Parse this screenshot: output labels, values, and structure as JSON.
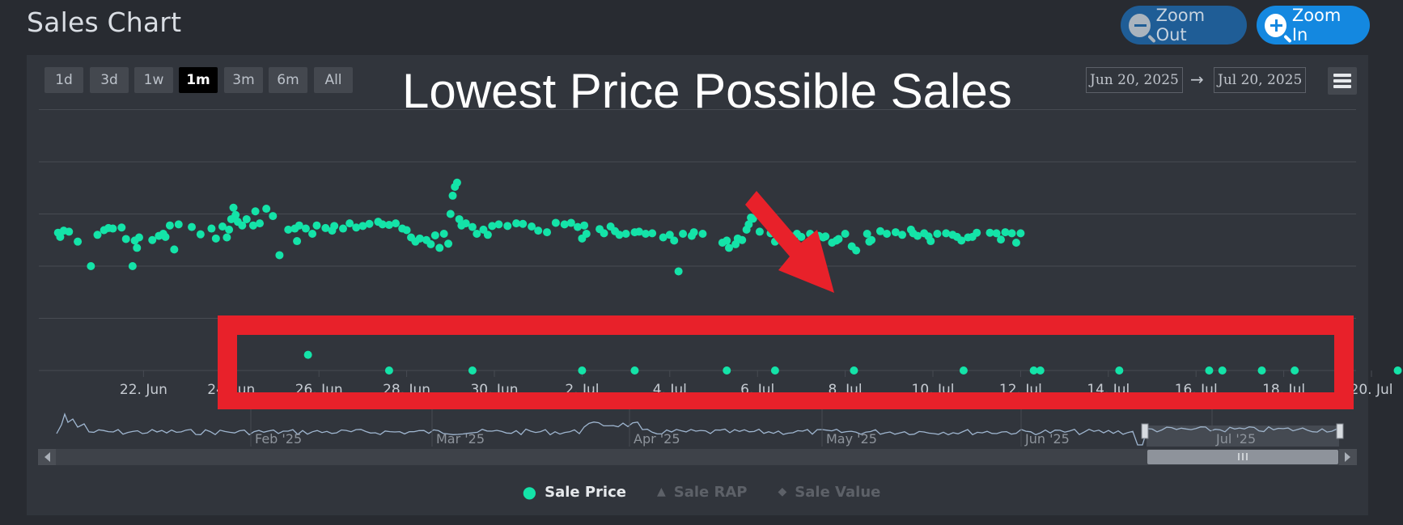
{
  "header": {
    "title": "Sales Chart",
    "zoom_out_label": "Zoom Out",
    "zoom_in_label": "Zoom In"
  },
  "range_selector": {
    "buttons": [
      "1d",
      "3d",
      "1w",
      "1m",
      "3m",
      "6m",
      "All"
    ],
    "active": "1m",
    "from": "Jun 20, 2025",
    "arrow": "→",
    "to": "Jul 20, 2025"
  },
  "annotation": {
    "text": "Lowest Price Possible Sales",
    "highlight_color": "#e8212a",
    "arrow_color": "#e8212a"
  },
  "colors": {
    "series": "#14e3a8",
    "navigator_line": "#9fb6d0",
    "grid": "#474b52"
  },
  "chart_data": {
    "type": "scatter",
    "x_start": "2025-06-20",
    "x_end": "2025-07-20",
    "x_tick_labels": [
      "22. Jun",
      "24. Jun",
      "26. Jun",
      "28. Jun",
      "30. Jun",
      "2. Jul",
      "4. Jul",
      "6. Jul",
      "8. Jul",
      "10. Jul",
      "12. Jul",
      "14. Jul",
      "16. Jul",
      "18. Jul",
      "20. Jul"
    ],
    "grid_lines": 6,
    "series": [
      {
        "name": "Sale Price",
        "points_main": [
          [
            20.05,
            2.64
          ],
          [
            20.1,
            2.56
          ],
          [
            20.18,
            2.68
          ],
          [
            20.3,
            2.66
          ],
          [
            20.5,
            2.47
          ],
          [
            20.8,
            2.0
          ],
          [
            20.95,
            2.6
          ],
          [
            21.1,
            2.69
          ],
          [
            21.2,
            2.73
          ],
          [
            21.3,
            2.72
          ],
          [
            21.5,
            2.74
          ],
          [
            21.6,
            2.52
          ],
          [
            21.75,
            2.0
          ],
          [
            21.8,
            2.49
          ],
          [
            21.85,
            2.35
          ],
          [
            21.9,
            2.55
          ],
          [
            22.2,
            2.5
          ],
          [
            22.35,
            2.58
          ],
          [
            22.45,
            2.62
          ],
          [
            22.5,
            2.56
          ],
          [
            22.6,
            2.78
          ],
          [
            22.7,
            2.32
          ],
          [
            22.8,
            2.8
          ],
          [
            23.1,
            2.75
          ],
          [
            23.3,
            2.61
          ],
          [
            23.55,
            2.72
          ],
          [
            23.65,
            2.53
          ],
          [
            23.8,
            2.76
          ],
          [
            23.9,
            2.55
          ],
          [
            23.95,
            2.7
          ],
          [
            24.0,
            2.9
          ],
          [
            24.05,
            3.12
          ],
          [
            24.1,
            2.98
          ],
          [
            24.15,
            2.85
          ],
          [
            24.25,
            2.78
          ],
          [
            24.35,
            2.9
          ],
          [
            24.5,
            2.78
          ],
          [
            24.55,
            3.05
          ],
          [
            24.65,
            2.82
          ],
          [
            24.8,
            3.1
          ],
          [
            24.95,
            2.96
          ],
          [
            25.1,
            2.21
          ],
          [
            25.3,
            2.7
          ],
          [
            25.45,
            2.72
          ],
          [
            25.5,
            2.48
          ],
          [
            25.55,
            2.78
          ],
          [
            25.7,
            2.72
          ],
          [
            25.85,
            2.62
          ],
          [
            25.95,
            2.78
          ],
          [
            26.15,
            2.73
          ],
          [
            26.3,
            2.68
          ],
          [
            26.35,
            2.77
          ],
          [
            26.55,
            2.72
          ],
          [
            26.7,
            2.82
          ],
          [
            26.85,
            2.74
          ],
          [
            27.0,
            2.77
          ],
          [
            27.15,
            2.81
          ],
          [
            27.35,
            2.85
          ],
          [
            27.45,
            2.8
          ],
          [
            27.6,
            2.79
          ],
          [
            27.75,
            2.82
          ],
          [
            27.9,
            2.72
          ],
          [
            28.0,
            2.69
          ],
          [
            28.1,
            2.55
          ],
          [
            28.2,
            2.47
          ],
          [
            28.3,
            2.53
          ],
          [
            28.45,
            2.5
          ],
          [
            28.55,
            2.42
          ],
          [
            28.65,
            2.59
          ],
          [
            28.75,
            2.35
          ],
          [
            28.85,
            2.62
          ],
          [
            28.95,
            2.43
          ],
          [
            29.0,
            3.0
          ],
          [
            29.05,
            3.35
          ],
          [
            29.1,
            3.52
          ],
          [
            29.15,
            3.6
          ],
          [
            29.2,
            2.9
          ],
          [
            29.25,
            2.78
          ],
          [
            29.35,
            2.82
          ],
          [
            29.5,
            2.75
          ],
          [
            29.6,
            2.62
          ],
          [
            29.75,
            2.7
          ],
          [
            29.85,
            2.6
          ],
          [
            29.95,
            2.77
          ],
          [
            30.1,
            2.8
          ],
          [
            30.3,
            2.77
          ],
          [
            30.5,
            2.82
          ],
          [
            30.65,
            2.81
          ],
          [
            30.85,
            2.76
          ],
          [
            31.0,
            2.68
          ],
          [
            31.2,
            2.65
          ],
          [
            31.4,
            2.83
          ],
          [
            31.6,
            2.8
          ],
          [
            31.75,
            2.83
          ],
          [
            31.9,
            2.75
          ],
          [
            32.0,
            2.53
          ],
          [
            32.05,
            2.78
          ],
          [
            32.1,
            2.62
          ],
          [
            32.4,
            2.71
          ],
          [
            32.5,
            2.63
          ],
          [
            32.65,
            2.76
          ],
          [
            32.75,
            2.67
          ],
          [
            32.85,
            2.6
          ],
          [
            33.0,
            2.62
          ],
          [
            33.2,
            2.65
          ],
          [
            33.3,
            2.66
          ],
          [
            33.45,
            2.62
          ],
          [
            33.6,
            2.63
          ],
          [
            33.85,
            2.55
          ],
          [
            34.0,
            2.6
          ],
          [
            34.1,
            2.49
          ],
          [
            34.2,
            1.9
          ],
          [
            34.3,
            2.62
          ],
          [
            34.5,
            2.58
          ],
          [
            34.55,
            2.65
          ],
          [
            34.75,
            2.62
          ],
          [
            35.2,
            2.45
          ],
          [
            35.3,
            2.49
          ],
          [
            35.35,
            2.35
          ],
          [
            35.5,
            2.42
          ],
          [
            35.55,
            2.53
          ],
          [
            35.65,
            2.5
          ],
          [
            35.75,
            2.7
          ],
          [
            35.8,
            2.8
          ],
          [
            35.85,
            2.93
          ],
          [
            35.9,
            2.91
          ],
          [
            36.0,
            3.0
          ],
          [
            36.05,
            2.66
          ],
          [
            36.3,
            2.63
          ],
          [
            36.4,
            2.47
          ],
          [
            36.5,
            2.72
          ],
          [
            36.55,
            2.6
          ],
          [
            36.75,
            2.58
          ],
          [
            36.9,
            2.62
          ],
          [
            37.0,
            2.56
          ],
          [
            37.2,
            2.62
          ],
          [
            37.4,
            2.58
          ],
          [
            37.5,
            2.55
          ],
          [
            37.55,
            2.57
          ],
          [
            37.7,
            2.45
          ],
          [
            37.8,
            2.49
          ],
          [
            37.85,
            2.52
          ],
          [
            38.0,
            2.62
          ],
          [
            38.15,
            2.38
          ],
          [
            38.25,
            2.3
          ],
          [
            38.5,
            2.62
          ],
          [
            38.55,
            2.47
          ],
          [
            38.6,
            2.5
          ],
          [
            38.8,
            2.67
          ],
          [
            38.95,
            2.62
          ],
          [
            39.15,
            2.65
          ],
          [
            39.3,
            2.6
          ],
          [
            39.5,
            2.7
          ],
          [
            39.55,
            2.63
          ],
          [
            39.65,
            2.58
          ],
          [
            39.8,
            2.63
          ],
          [
            39.9,
            2.57
          ],
          [
            39.95,
            2.48
          ],
          [
            40.1,
            2.62
          ],
          [
            40.3,
            2.63
          ],
          [
            40.45,
            2.6
          ],
          [
            40.55,
            2.56
          ],
          [
            40.65,
            2.49
          ],
          [
            40.8,
            2.55
          ],
          [
            40.9,
            2.56
          ],
          [
            41.0,
            2.64
          ],
          [
            41.3,
            2.64
          ],
          [
            41.45,
            2.63
          ],
          [
            41.55,
            2.51
          ],
          [
            41.65,
            2.65
          ],
          [
            41.8,
            2.63
          ],
          [
            41.9,
            2.45
          ],
          [
            42.0,
            2.63
          ]
        ],
        "points_low": [
          [
            25.75,
            0.3
          ],
          [
            27.6,
            0.0
          ],
          [
            29.5,
            0.0
          ],
          [
            32.0,
            0.0
          ],
          [
            33.2,
            0.0
          ],
          [
            35.3,
            0.0
          ],
          [
            36.4,
            0.0
          ],
          [
            38.2,
            0.0
          ],
          [
            40.7,
            0.0
          ],
          [
            42.3,
            0.0
          ],
          [
            42.45,
            0.0
          ],
          [
            44.25,
            0.0
          ],
          [
            46.3,
            0.0
          ],
          [
            46.6,
            0.0
          ],
          [
            47.5,
            0.0
          ],
          [
            48.25,
            0.0
          ],
          [
            50.6,
            0.0
          ]
        ]
      },
      {
        "name": "Sale RAP",
        "visible": false
      },
      {
        "name": "Sale Value",
        "visible": false
      }
    ],
    "navigator": {
      "labels": [
        "Feb '25",
        "Mar '25",
        "Apr '25",
        "May '25",
        "Jun '25",
        "Jul '25"
      ]
    }
  },
  "legend": [
    {
      "label": "Sale Price",
      "symbol": "●",
      "state": "on"
    },
    {
      "label": "Sale RAP",
      "symbol": "▲",
      "state": "off"
    },
    {
      "label": "Sale Value",
      "symbol": "◆",
      "state": "off"
    }
  ]
}
